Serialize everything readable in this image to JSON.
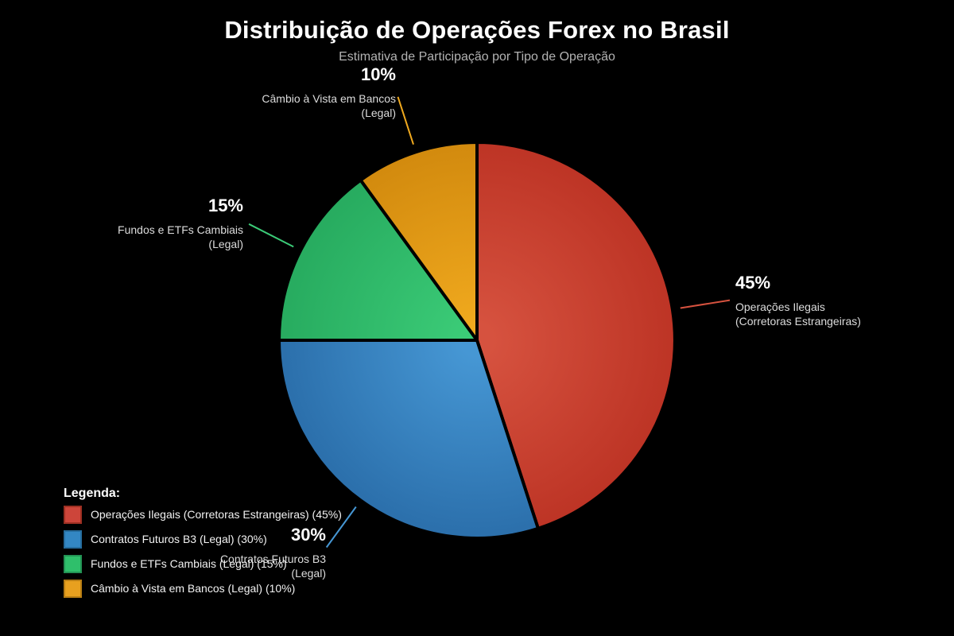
{
  "chart_data": {
    "type": "pie",
    "title": "Distribuição de Operações Forex no Brasil",
    "subtitle": "Estimativa de Participação por Tipo de Operação",
    "legend_title": "Legenda:",
    "background_color": "#000000",
    "title_color": "#ffffff",
    "subtitle_color": "#b3b3b3",
    "slice_separator_color": "#000000",
    "start_angle_deg": 0,
    "direction": "clockwise",
    "legend_position": "bottom-left",
    "slices": [
      {
        "id": "operacoes-ilegais",
        "name": "Operações Ilegais (Corretoras Estrangeiras)",
        "value": 45,
        "pct_label": "45%",
        "ann_line1": "Operações Ilegais",
        "ann_line2": "(Corretoras Estrangeiras)",
        "legend_label": "Operações Ilegais (Corretoras Estrangeiras) (45%)",
        "color": "#cd453a",
        "color_center": "#d6523f",
        "color_edge": "#bd3425",
        "swatch_border": "#9c2f22"
      },
      {
        "id": "contratos-futuros-b3",
        "name": "Contratos Futuros B3 (Legal)",
        "value": 30,
        "pct_label": "30%",
        "ann_line1": "Contratos Futuros B3",
        "ann_line2": "(Legal)",
        "legend_label": "Contratos Futuros B3 (Legal) (30%)",
        "color": "#3387c3",
        "color_center": "#4697d4",
        "color_edge": "#2b6fab",
        "swatch_border": "#266d9e"
      },
      {
        "id": "fundos-etfs-cambiais",
        "name": "Fundos e ETFs Cambiais (Legal)",
        "value": 15,
        "pct_label": "15%",
        "ann_line1": "Fundos e ETFs Cambiais",
        "ann_line2": "(Legal)",
        "legend_label": "Fundos e ETFs Cambiais (Legal) (15%)",
        "color": "#2fbf6b",
        "color_center": "#3bcb77",
        "color_edge": "#27ab5f",
        "swatch_border": "#239254"
      },
      {
        "id": "cambio-a-vista",
        "name": "Câmbio à Vista em Bancos (Legal)",
        "value": 10,
        "pct_label": "10%",
        "ann_line1": "Câmbio à Vista em Bancos",
        "ann_line2": "(Legal)",
        "legend_label": "Câmbio à Vista em Bancos (Legal) (10%)",
        "color": "#e8a01f",
        "color_center": "#f0a91e",
        "color_edge": "#d28a0e",
        "swatch_border": "#b77d14"
      }
    ]
  }
}
